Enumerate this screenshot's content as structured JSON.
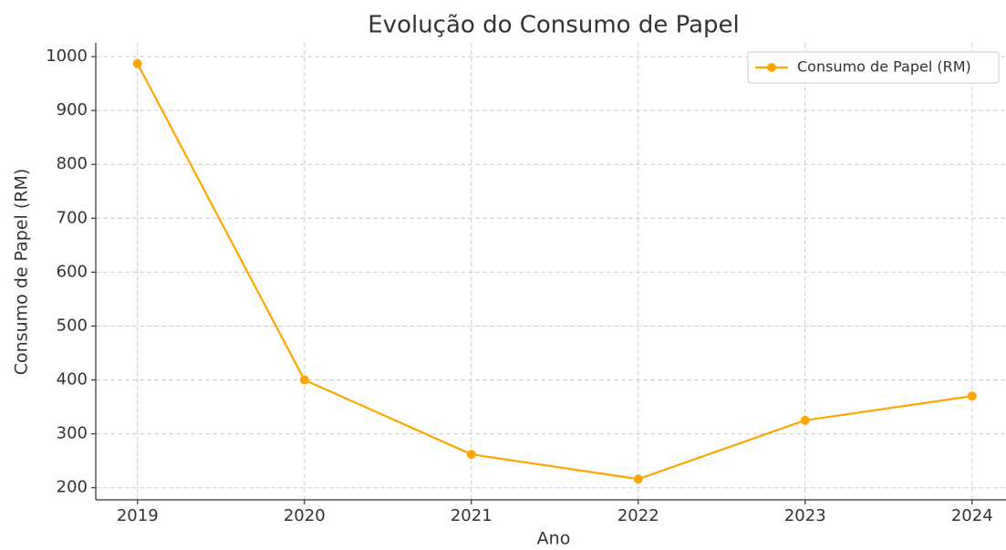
{
  "chart_data": {
    "type": "line",
    "title": "Evolução do Consumo de Papel",
    "x_label": "Ano",
    "y_label": "Consumo de Papel (RM)",
    "x": [
      2019,
      2020,
      2021,
      2022,
      2023,
      2024
    ],
    "series": [
      {
        "name": "Consumo de Papel (RM)",
        "color": "#ffa500",
        "values": [
          987,
          400,
          262,
          216,
          325,
          370
        ]
      }
    ],
    "xlim": [
      2018.75,
      2024.25
    ],
    "xticks": [
      2019,
      2020,
      2021,
      2022,
      2023,
      2024
    ],
    "ylim": [
      177.5,
      1025.5
    ],
    "yticks": [
      200,
      300,
      400,
      500,
      600,
      700,
      800,
      900,
      1000
    ],
    "grid": true,
    "legend": "upper right"
  }
}
